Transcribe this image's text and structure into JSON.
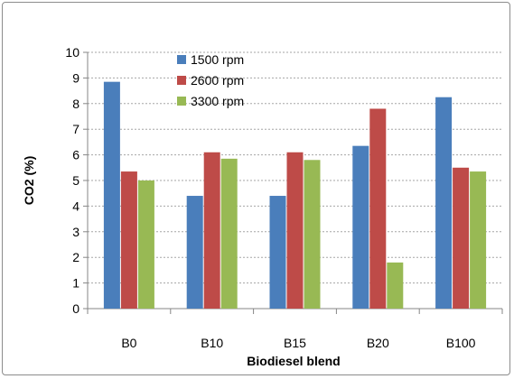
{
  "chart_data": {
    "type": "bar",
    "title": "",
    "xlabel": "Biodiesel blend",
    "ylabel": "CO2 (%)",
    "ylim": [
      0,
      10
    ],
    "yticks": [
      "0",
      "1",
      "2",
      "3",
      "4",
      "5",
      "6",
      "7",
      "8",
      "9",
      "10"
    ],
    "categories": [
      "B0",
      "B10",
      "B15",
      "B20",
      "B100"
    ],
    "grid": true,
    "legend_position": "top-left inside",
    "series": [
      {
        "name": "1500 rpm",
        "color": "#4a7ebb",
        "values": [
          8.85,
          4.4,
          4.4,
          6.35,
          8.25
        ]
      },
      {
        "name": "2600 rpm",
        "color": "#be4b48",
        "values": [
          5.35,
          6.1,
          6.1,
          7.8,
          5.5
        ]
      },
      {
        "name": "3300 rpm",
        "color": "#98b954",
        "values": [
          5.0,
          5.85,
          5.8,
          1.8,
          5.35
        ]
      }
    ]
  }
}
